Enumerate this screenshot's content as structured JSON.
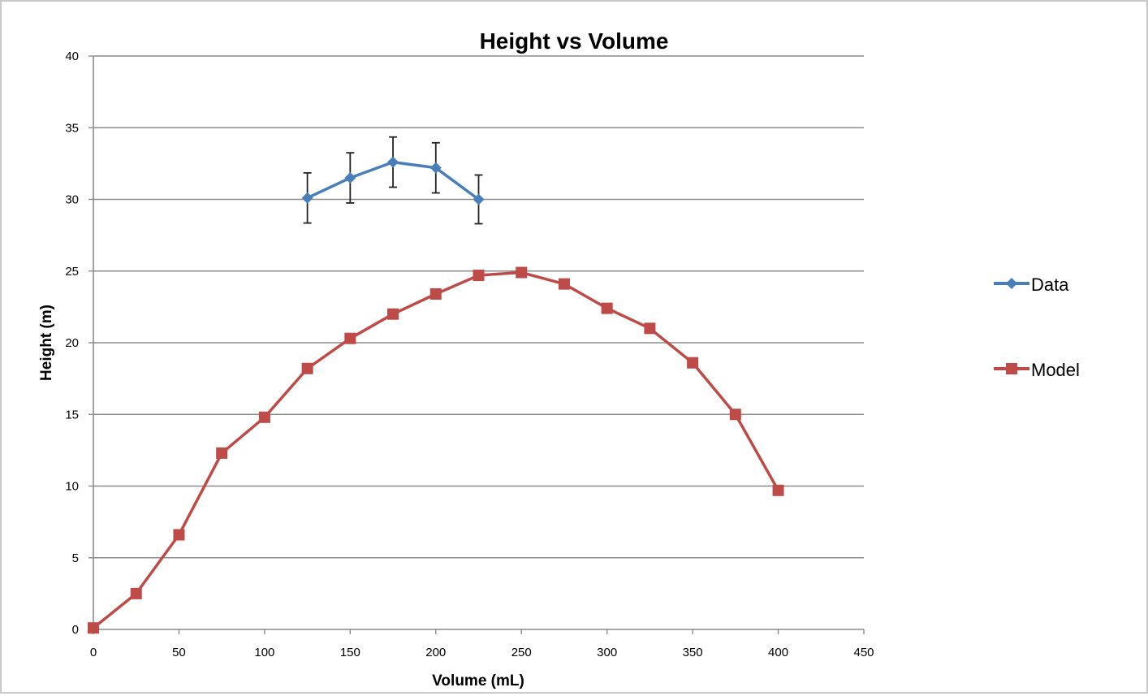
{
  "chart_data": {
    "type": "line",
    "title": "Height vs Volume",
    "xlabel": "Volume (mL)",
    "ylabel": "Height (m)",
    "xlim": [
      0,
      450
    ],
    "ylim": [
      0,
      40
    ],
    "xticks": [
      0,
      50,
      100,
      150,
      200,
      250,
      300,
      350,
      400,
      450
    ],
    "yticks": [
      0,
      5,
      10,
      15,
      20,
      25,
      30,
      35,
      40
    ],
    "grid": "horizontal",
    "legend_position": "right",
    "series": [
      {
        "name": "Data",
        "marker": "diamond",
        "color": "#4a7ebb",
        "x": [
          125,
          150,
          175,
          200,
          225
        ],
        "y": [
          30.1,
          31.5,
          32.6,
          32.2,
          30.0
        ],
        "error": [
          1.75,
          1.75,
          1.75,
          1.75,
          1.7
        ]
      },
      {
        "name": "Model",
        "marker": "square",
        "color": "#be4b48",
        "x": [
          0,
          25,
          50,
          75,
          100,
          125,
          150,
          175,
          200,
          225,
          250,
          275,
          300,
          325,
          350,
          375,
          400
        ],
        "y": [
          0.1,
          2.5,
          6.6,
          12.3,
          14.8,
          18.2,
          20.3,
          22.0,
          23.4,
          24.7,
          24.9,
          24.1,
          22.4,
          21.0,
          18.6,
          15.0,
          9.7
        ]
      }
    ]
  }
}
